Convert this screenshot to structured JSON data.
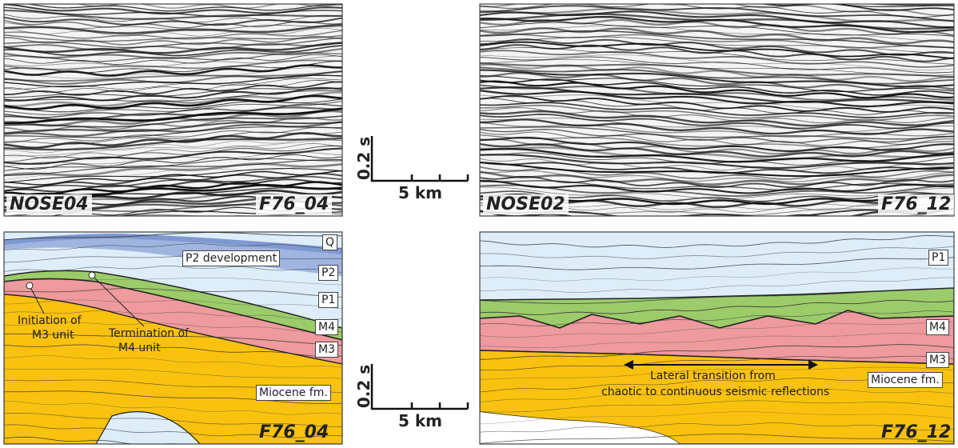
{
  "top_left": {
    "labels": [
      "NOSE04",
      "F76_04"
    ]
  },
  "top_right": {
    "labels": [
      "NOSE02",
      "F76_12"
    ]
  },
  "bottom_left": {
    "label": "F76_04",
    "units": [
      "Q",
      "P2 development",
      "P2",
      "P1",
      "M4",
      "M3",
      "Miocene fm."
    ],
    "annotations": [
      [
        "Initiation of",
        "M3 unit"
      ],
      [
        "Termination of",
        "M4 unit"
      ]
    ]
  },
  "bottom_right": {
    "label": "F76_12",
    "units": [
      "P1",
      "M4",
      "M3",
      "Miocene fm."
    ],
    "annotation": [
      "Lateral transition from",
      "chaotic to continuous seismic reflections"
    ]
  },
  "scale_bars": [
    {
      "time": "0.2 s",
      "distance": "5 km"
    },
    {
      "time": "0.2 s",
      "distance": "5 km"
    }
  ]
}
